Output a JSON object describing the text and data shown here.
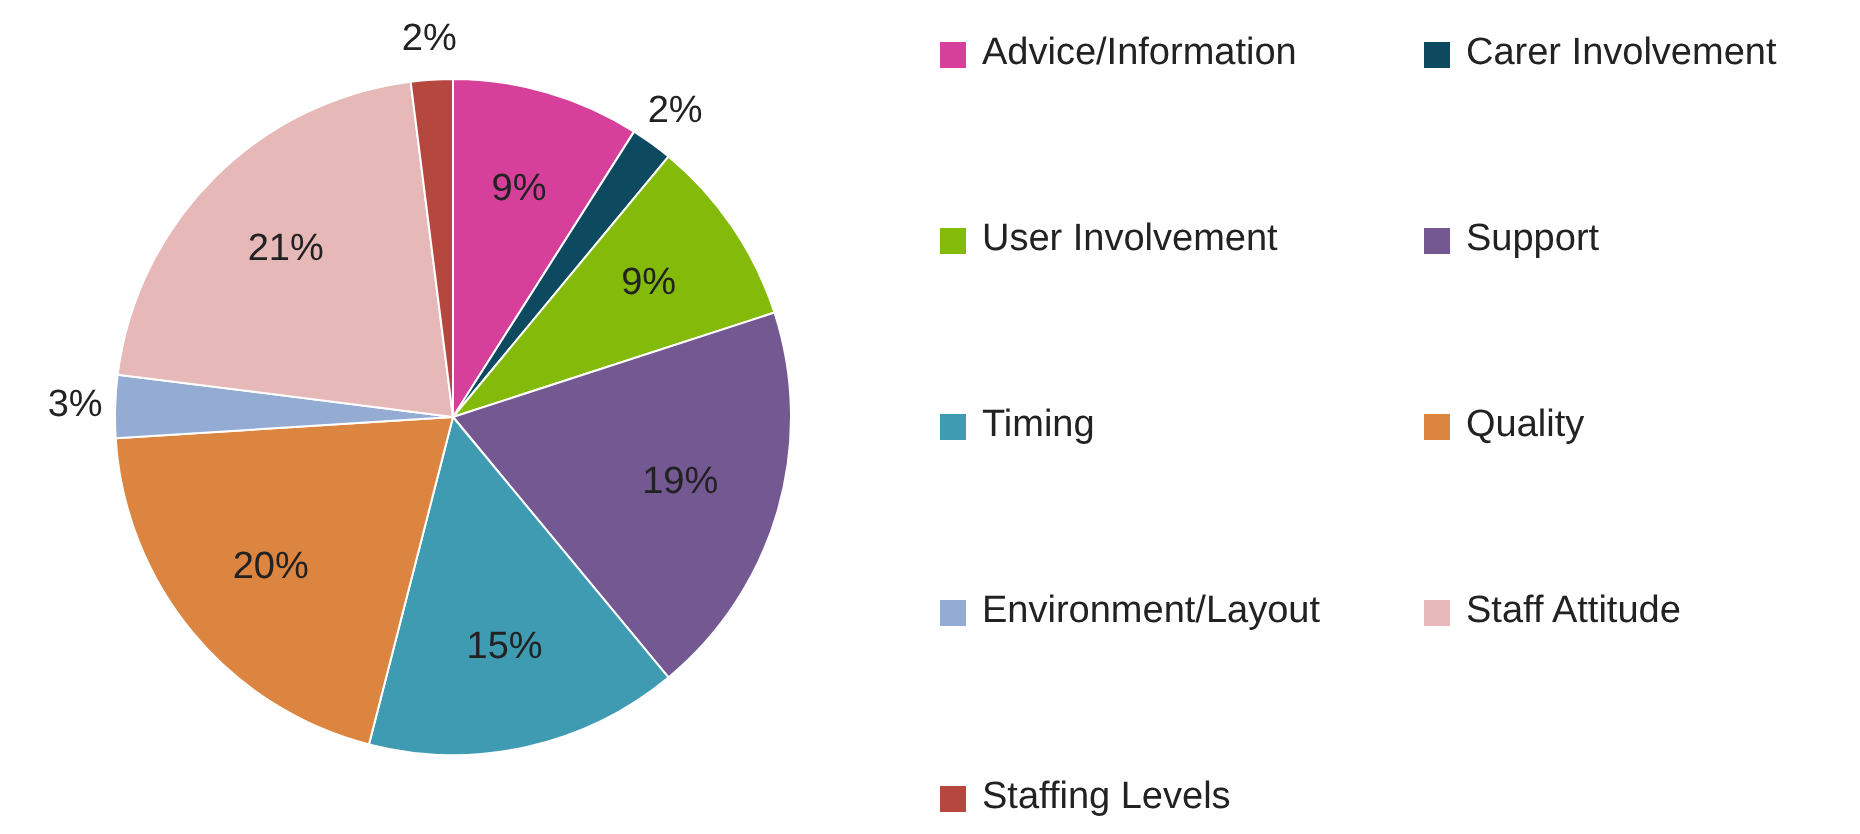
{
  "chart_data": {
    "type": "pie",
    "categories": [
      "Advice/Information",
      "Carer Involvement",
      "User Involvement",
      "Support",
      "Timing",
      "Quality",
      "Environment/Layout",
      "Staff Attitude",
      "Staffing Levels"
    ],
    "values": [
      9,
      2,
      9,
      19,
      15,
      20,
      3,
      21,
      2
    ],
    "colors": [
      "#d6409a",
      "#0d4a5f",
      "#84bb0a",
      "#735891",
      "#3f9bb1",
      "#dc8540",
      "#94abd3",
      "#e7b8b8",
      "#b5473f"
    ],
    "value_labels": [
      "9%",
      "2%",
      "9%",
      "19%",
      "15%",
      "20%",
      "3%",
      "21%",
      "2%"
    ],
    "legend": "right"
  }
}
